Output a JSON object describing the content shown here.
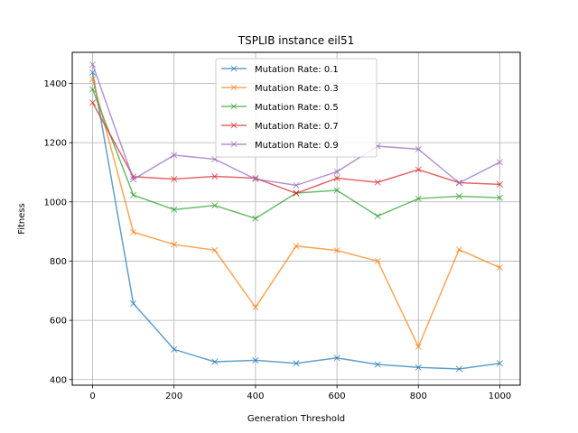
{
  "chart_data": {
    "type": "line",
    "title": "TSPLIB instance eil51",
    "xlabel": "Generation Threshold",
    "ylabel": "Fitness",
    "x": [
      0,
      100,
      200,
      300,
      400,
      500,
      600,
      700,
      800,
      900,
      1000
    ],
    "xlim": [
      -50,
      1050
    ],
    "ylim": [
      381,
      1505
    ],
    "xticks": [
      0,
      200,
      400,
      600,
      800,
      1000
    ],
    "yticks": [
      400,
      600,
      800,
      1000,
      1200,
      1400
    ],
    "grid": true,
    "marker": "x",
    "legend_position": "top-center",
    "series": [
      {
        "name": "Mutation Rate: 0.1",
        "color": "#1f77b4",
        "values": [
          1437,
          657,
          502,
          460,
          465,
          455,
          473,
          451,
          441,
          436,
          455
        ]
      },
      {
        "name": "Mutation Rate: 0.3",
        "color": "#ff7f0e",
        "values": [
          1415,
          898,
          856,
          837,
          644,
          851,
          836,
          800,
          511,
          839,
          778
        ]
      },
      {
        "name": "Mutation Rate: 0.5",
        "color": "#2ca02c",
        "values": [
          1380,
          1023,
          974,
          988,
          944,
          1030,
          1039,
          952,
          1011,
          1019,
          1014
        ]
      },
      {
        "name": "Mutation Rate: 0.7",
        "color": "#d62728",
        "values": [
          1335,
          1085,
          1077,
          1086,
          1080,
          1029,
          1080,
          1066,
          1109,
          1065,
          1059
        ]
      },
      {
        "name": "Mutation Rate: 0.9",
        "color": "#9467bd",
        "values": [
          1464,
          1076,
          1158,
          1144,
          1077,
          1056,
          1102,
          1188,
          1178,
          1064,
          1134
        ]
      }
    ]
  }
}
